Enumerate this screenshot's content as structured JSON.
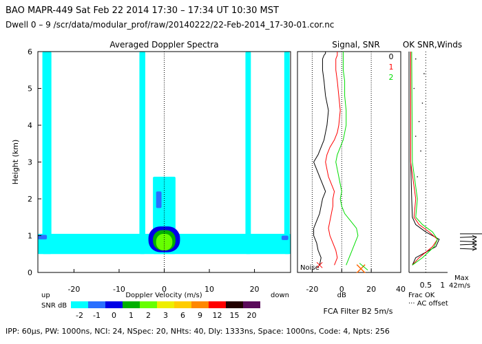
{
  "header": {
    "line1": "BAO  MAPR-449  Sat Feb 22 2014 17:30 – 17:34 UT 10:30 MST",
    "line2": "Dwell  0 – 9   /scr/data/modular_prof/raw/20140222/22-Feb-2014_17-30-01.cor.nc"
  },
  "footer": "IPP:  60μs,  PW: 1000ns,  NCI:  24,  NSpec: 20, NHts: 40,  Dly: 1333ns,  Space: 1000ns,  Code: 4,  Npts: 256",
  "colors": {
    "snr_scale": [
      "#00ffff",
      "#2a6fff",
      "#0000e6",
      "#00b000",
      "#66ff00",
      "#eeee00",
      "#ffcc00",
      "#ff8800",
      "#ff0000",
      "#220000",
      "#5a0a5a"
    ],
    "signal_0": "#000000",
    "signal_1": "#ff0000",
    "signal_2": "#00dd00",
    "accent_marker": "#ff6600"
  },
  "chart_data": [
    {
      "type": "heatmap",
      "title": "Averaged Doppler Spectra",
      "xlabel": "Doppler Velocity (m/s)",
      "ylabel": "Height (km)",
      "xlim": [
        -28,
        28
      ],
      "ylim": [
        0,
        6
      ],
      "x_ticks": [
        -20,
        -10,
        0,
        10,
        20
      ],
      "y_ticks": [
        0,
        1,
        2,
        3,
        4,
        5,
        6
      ],
      "left_note": "up",
      "right_note": "down",
      "colorbar": {
        "label": "SNR dB",
        "ticks": [
          "-2",
          "-1",
          "0",
          "1",
          "2",
          "3",
          "6",
          "9",
          "12",
          "15",
          "20"
        ]
      },
      "regions": [
        {
          "level": 0,
          "x": [
            -28,
            28
          ],
          "y": [
            0.5,
            1.05
          ]
        },
        {
          "level": 0,
          "x": [
            -27,
            -25
          ],
          "y": [
            0.5,
            6.0
          ]
        },
        {
          "level": 0,
          "x": [
            -5.5,
            -4.2
          ],
          "y": [
            0.5,
            6.0
          ]
        },
        {
          "level": 0,
          "x": [
            18,
            19.2
          ],
          "y": [
            0.5,
            6.0
          ]
        },
        {
          "level": 0,
          "x": [
            26.6,
            27.8
          ],
          "y": [
            0.5,
            6.0
          ]
        },
        {
          "level": 0,
          "x": [
            -2.5,
            2.5
          ],
          "y": [
            0.5,
            2.6
          ]
        },
        {
          "level": 1,
          "x": [
            -1.8,
            -0.6
          ],
          "y": [
            1.75,
            2.2
          ]
        },
        {
          "level": 1,
          "x": [
            -28,
            -26
          ],
          "y": [
            0.9,
            1.02
          ]
        },
        {
          "level": 1,
          "x": [
            26,
            27.5
          ],
          "y": [
            0.88,
            1.0
          ]
        },
        {
          "level": 2,
          "x": [
            -3.5,
            3.5
          ],
          "y": [
            0.55,
            1.25
          ]
        },
        {
          "level": 3,
          "x": [
            -2.5,
            2.5
          ],
          "y": [
            0.6,
            1.15
          ]
        },
        {
          "level": 4,
          "x": [
            -1.8,
            1.8
          ],
          "y": [
            0.6,
            1.05
          ]
        }
      ]
    },
    {
      "type": "line",
      "title": "Signal, SNR",
      "xlabel": "dB",
      "xlim": [
        -30,
        40
      ],
      "ylim": [
        0,
        6
      ],
      "x_ticks": [
        -20,
        0,
        20,
        40
      ],
      "reference_lines_x": [
        -20,
        0,
        20
      ],
      "annotations": [
        "Noise"
      ],
      "legend": [
        "0",
        "1",
        "2"
      ],
      "series": [
        {
          "name": "0",
          "x": [
            -15,
            -14,
            -16,
            -17,
            -19,
            -19,
            -17,
            -15,
            -14,
            -13,
            -11,
            -13,
            -15,
            -17,
            -19,
            -16,
            -14,
            -12,
            -11,
            -10,
            -9,
            -11,
            -12,
            -13,
            -13,
            -12,
            -11,
            -11
          ],
          "y": [
            0.2,
            0.4,
            0.6,
            0.8,
            1.0,
            1.2,
            1.4,
            1.6,
            1.8,
            2.0,
            2.2,
            2.4,
            2.6,
            2.8,
            3.0,
            3.2,
            3.4,
            3.6,
            3.8,
            4.0,
            4.4,
            4.8,
            5.2,
            5.5,
            5.8,
            5.9,
            5.95,
            6.0
          ]
        },
        {
          "name": "1",
          "x": [
            -5,
            -3,
            -4,
            -6,
            -8,
            -9,
            -8,
            -7,
            -6,
            -6,
            -5,
            -7,
            -9,
            -10,
            -11,
            -10,
            -8,
            -5,
            -3,
            -2,
            -1,
            -2,
            -3,
            -4,
            -4,
            -3,
            -3,
            -3
          ],
          "y": [
            0.2,
            0.4,
            0.6,
            0.8,
            1.0,
            1.2,
            1.4,
            1.6,
            1.8,
            2.0,
            2.2,
            2.4,
            2.6,
            2.8,
            3.0,
            3.2,
            3.4,
            3.6,
            3.8,
            4.0,
            4.4,
            4.8,
            5.2,
            5.5,
            5.8,
            5.9,
            5.95,
            6.0
          ]
        },
        {
          "name": "2",
          "x": [
            3,
            5,
            7,
            9,
            11,
            10,
            6,
            2,
            0,
            -1,
            0,
            -1,
            -2,
            -3,
            -4,
            -3,
            -1,
            1,
            2,
            3,
            3,
            2,
            2,
            1,
            1,
            1,
            1,
            1
          ],
          "y": [
            0.2,
            0.4,
            0.6,
            0.8,
            1.0,
            1.2,
            1.4,
            1.6,
            1.8,
            2.0,
            2.2,
            2.4,
            2.6,
            2.8,
            3.0,
            3.2,
            3.4,
            3.6,
            3.8,
            4.0,
            4.4,
            4.8,
            5.2,
            5.5,
            5.8,
            5.9,
            5.95,
            6.0
          ]
        }
      ]
    },
    {
      "type": "line",
      "title": "OK SNR,Winds",
      "xlabel": "Frac OK",
      "xlim": [
        0,
        1.15
      ],
      "ylim": [
        0,
        6
      ],
      "x_ticks": [
        "0.5",
        "1"
      ],
      "notes": [
        "Max",
        "42m/s",
        "··· AC offset"
      ],
      "series": [
        {
          "name": "0",
          "x": [
            0.1,
            0.2,
            0.8,
            0.9,
            0.5,
            0.2,
            0.1,
            0.08,
            0.05,
            0.05
          ],
          "y": [
            0.2,
            0.4,
            0.7,
            0.9,
            1.1,
            1.3,
            1.5,
            2.0,
            3.0,
            6.0
          ]
        },
        {
          "name": "1",
          "x": [
            0.1,
            0.3,
            0.7,
            0.85,
            0.6,
            0.3,
            0.15,
            0.2,
            0.05,
            0.05
          ],
          "y": [
            0.2,
            0.4,
            0.7,
            0.9,
            1.1,
            1.3,
            1.5,
            2.0,
            3.0,
            6.0
          ]
        },
        {
          "name": "2",
          "x": [
            0.1,
            0.4,
            0.75,
            0.85,
            0.7,
            0.4,
            0.2,
            0.25,
            0.1,
            0.08
          ],
          "y": [
            0.2,
            0.4,
            0.7,
            0.9,
            1.1,
            1.3,
            1.5,
            2.0,
            3.0,
            6.0
          ]
        }
      ],
      "ac_offset_points": [
        {
          "x": 0.2,
          "y": 5.8
        },
        {
          "x": 0.45,
          "y": 5.4
        },
        {
          "x": 0.15,
          "y": 5.0
        },
        {
          "x": 0.4,
          "y": 4.6
        },
        {
          "x": 0.3,
          "y": 4.1
        },
        {
          "x": 0.2,
          "y": 3.7
        },
        {
          "x": 0.35,
          "y": 3.3
        },
        {
          "x": 0.25,
          "y": 2.6
        }
      ]
    }
  ],
  "filter_label": "FCA Filter B2  5m/s"
}
